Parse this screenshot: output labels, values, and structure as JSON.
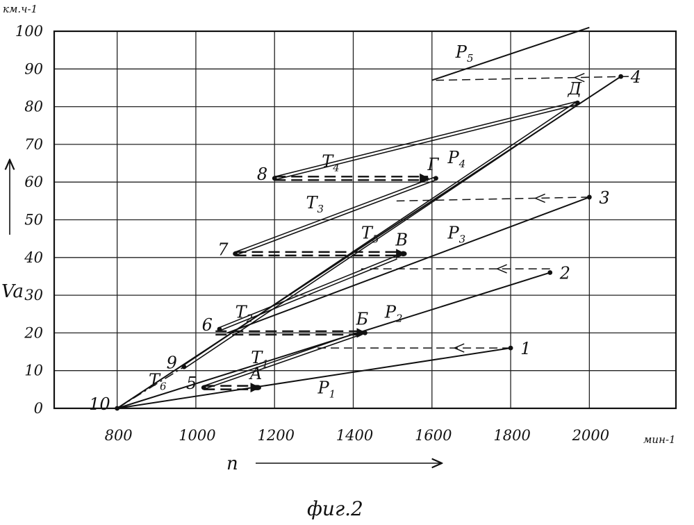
{
  "chart_data": {
    "type": "line",
    "caption": "фиг.2",
    "y_unit": "км.ч-1",
    "x_unit": "мин-1",
    "xlabel": "n",
    "ylabel": "Va",
    "xlim": [
      640,
      2220
    ],
    "ylim": [
      0,
      100
    ],
    "grid": true,
    "x_ticks": [
      800,
      1000,
      1200,
      1400,
      1600,
      1800,
      2000
    ],
    "y_ticks": [
      0,
      10,
      20,
      30,
      40,
      50,
      60,
      70,
      80,
      90,
      100
    ],
    "series": [
      {
        "name": "P1",
        "label": "P",
        "sub": "1",
        "style": "solid",
        "points": [
          [
            800,
            0
          ],
          [
            1800,
            16
          ]
        ]
      },
      {
        "name": "P2",
        "label": "P",
        "sub": "2",
        "style": "solid",
        "points": [
          [
            800,
            0
          ],
          [
            1900,
            36
          ]
        ]
      },
      {
        "name": "P3",
        "label": "P",
        "sub": "3",
        "style": "solid",
        "points": [
          [
            1080,
            20
          ],
          [
            2000,
            56
          ]
        ]
      },
      {
        "name": "P4",
        "label": "P",
        "sub": "4",
        "style": "solid",
        "points": [
          [
            800,
            0
          ],
          [
            2080,
            88
          ]
        ]
      },
      {
        "name": "P5",
        "label": "P",
        "sub": "5",
        "style": "solid",
        "points": [
          [
            1600,
            87
          ],
          [
            2000,
            101
          ]
        ]
      },
      {
        "name": "T1",
        "label": "T",
        "sub": "1",
        "style": "double",
        "points": [
          [
            1020,
            5.5
          ],
          [
            1420,
            20
          ]
        ]
      },
      {
        "name": "T2",
        "label": "T",
        "sub": "2",
        "style": "double",
        "points": [
          [
            1060,
            21
          ],
          [
            1510,
            40
          ]
        ]
      },
      {
        "name": "T3",
        "label": "T",
        "sub": "3",
        "style": "double",
        "points": [
          [
            1100,
            41
          ],
          [
            1610,
            61
          ]
        ]
      },
      {
        "name": "T4",
        "label": "T",
        "sub": "4",
        "style": "double",
        "points": [
          [
            1200,
            61
          ],
          [
            1970,
            81
          ]
        ]
      },
      {
        "name": "T5",
        "label": "T",
        "sub": "5",
        "style": "double",
        "points": [
          [
            970,
            11
          ],
          [
            1970,
            81
          ]
        ]
      },
      {
        "name": "T6",
        "label": "T",
        "sub": "6",
        "style": "dashdot",
        "points": [
          [
            800,
            0
          ],
          [
            970,
            11
          ]
        ]
      }
    ],
    "shifts": [
      {
        "from": [
          2100,
          88
        ],
        "to": [
          1610,
          87
        ],
        "style": "dashed"
      },
      {
        "from": [
          2000,
          56
        ],
        "to": [
          1510,
          55
        ],
        "style": "dashed"
      },
      {
        "from": [
          1900,
          37
        ],
        "to": [
          1420,
          37
        ],
        "style": "dashed"
      },
      {
        "from": [
          1800,
          16
        ],
        "to": [
          1290,
          16
        ],
        "style": "dashed"
      },
      {
        "from": [
          1200,
          61
        ],
        "to": [
          1590,
          61
        ],
        "style": "bold-dashed"
      },
      {
        "from": [
          1100,
          41
        ],
        "to": [
          1530,
          41
        ],
        "style": "bold-dashed"
      },
      {
        "from": [
          1050,
          20
        ],
        "to": [
          1430,
          20
        ],
        "style": "bold-dashed"
      },
      {
        "from": [
          1020,
          5.5
        ],
        "to": [
          1160,
          5.5
        ],
        "style": "bold-dashed"
      }
    ],
    "point_labels": [
      {
        "text": "1",
        "x": 1800,
        "y": 16,
        "side": "right"
      },
      {
        "text": "2",
        "x": 1900,
        "y": 36,
        "side": "right"
      },
      {
        "text": "3",
        "x": 2000,
        "y": 56,
        "side": "right"
      },
      {
        "text": "4",
        "x": 2080,
        "y": 88,
        "side": "right"
      },
      {
        "text": "5",
        "x": 1020,
        "y": 5.5,
        "side": "left"
      },
      {
        "text": "6",
        "x": 1060,
        "y": 21,
        "side": "left"
      },
      {
        "text": "7",
        "x": 1100,
        "y": 41,
        "side": "left"
      },
      {
        "text": "8",
        "x": 1200,
        "y": 61,
        "side": "left"
      },
      {
        "text": "9",
        "x": 970,
        "y": 11,
        "side": "left"
      },
      {
        "text": "10",
        "x": 800,
        "y": 0,
        "side": "left"
      },
      {
        "text": "А",
        "x": 1160,
        "y": 5.5,
        "side": "above"
      },
      {
        "text": "Б",
        "x": 1430,
        "y": 20,
        "side": "above"
      },
      {
        "text": "В",
        "x": 1530,
        "y": 41,
        "side": "above"
      },
      {
        "text": "Г",
        "x": 1610,
        "y": 61,
        "side": "above"
      },
      {
        "text": "Д",
        "x": 1970,
        "y": 81,
        "side": "above"
      }
    ],
    "series_label_positions": [
      {
        "series": "P1",
        "x": 1310,
        "y": 4
      },
      {
        "series": "P2",
        "x": 1480,
        "y": 24
      },
      {
        "series": "P3",
        "x": 1640,
        "y": 45
      },
      {
        "series": "P4",
        "x": 1640,
        "y": 65
      },
      {
        "series": "P5",
        "x": 1660,
        "y": 93
      },
      {
        "series": "T1",
        "x": 1140,
        "y": 12
      },
      {
        "series": "T2",
        "x": 1100,
        "y": 24
      },
      {
        "series": "T3",
        "x": 1280,
        "y": 53
      },
      {
        "series": "T4",
        "x": 1320,
        "y": 64
      },
      {
        "series": "T5",
        "x": 1420,
        "y": 45
      },
      {
        "series": "T6",
        "x": 880,
        "y": 6
      }
    ]
  }
}
